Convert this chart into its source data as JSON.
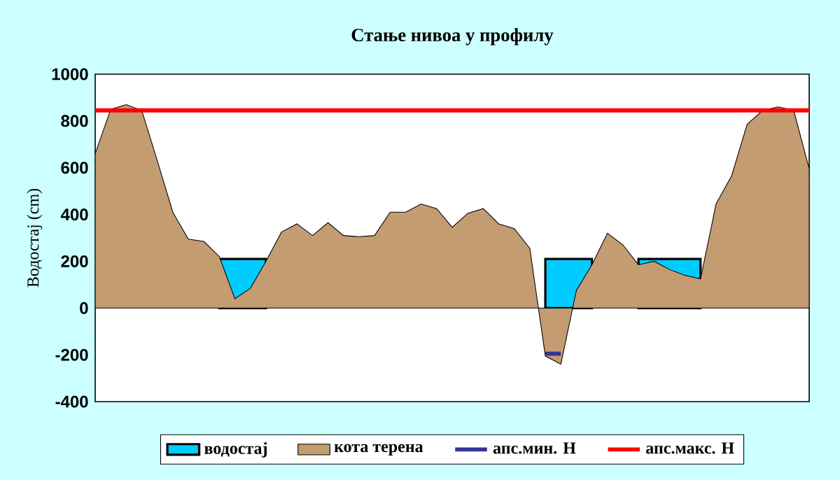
{
  "chart_data": {
    "type": "area",
    "title": "Стање нивоа у профилу",
    "ylabel": "Водостај (cm)",
    "categories": [
      null,
      null,
      null,
      null,
      null,
      null,
      null,
      null,
      null,
      null,
      null,
      null,
      null,
      null,
      null,
      null,
      null,
      null,
      null,
      null,
      null,
      null,
      null,
      null,
      null,
      null,
      null,
      null,
      null,
      null,
      null,
      null,
      null,
      null,
      null,
      null,
      null,
      null,
      null,
      null,
      null,
      null,
      null,
      null,
      null,
      null,
      null
    ],
    "series": [
      {
        "name": "водостај",
        "color": "#00ccff",
        "values": [
          null,
          null,
          null,
          null,
          null,
          null,
          null,
          null,
          210,
          210,
          210,
          210,
          null,
          null,
          null,
          null,
          null,
          null,
          null,
          null,
          null,
          null,
          null,
          null,
          null,
          null,
          null,
          null,
          null,
          210,
          210,
          210,
          210,
          null,
          null,
          210,
          210,
          210,
          210,
          210,
          null,
          null,
          null,
          null,
          null,
          null,
          null
        ]
      },
      {
        "name": "кота терена",
        "color": "#c49c72",
        "values": [
          660,
          850,
          870,
          845,
          630,
          410,
          295,
          285,
          220,
          40,
          85,
          200,
          325,
          360,
          310,
          365,
          310,
          305,
          310,
          410,
          410,
          445,
          425,
          345,
          405,
          425,
          360,
          340,
          255,
          -205,
          -240,
          75,
          185,
          320,
          270,
          185,
          200,
          165,
          140,
          125,
          445,
          565,
          785,
          845,
          860,
          845,
          595
        ]
      },
      {
        "name": "апс.мин. Н",
        "type": "line",
        "color": "#333399",
        "values": [
          null,
          null,
          null,
          null,
          null,
          null,
          null,
          null,
          null,
          null,
          null,
          null,
          null,
          null,
          null,
          null,
          null,
          null,
          null,
          null,
          null,
          null,
          null,
          null,
          null,
          null,
          null,
          null,
          null,
          -195,
          -195,
          null,
          null,
          null,
          null,
          null,
          null,
          null,
          null,
          null,
          null,
          null,
          null,
          null,
          null,
          null,
          null
        ]
      },
      {
        "name": "апс.макс. Н",
        "type": "line",
        "color": "#ff0000",
        "values": [
          845,
          845,
          845,
          845,
          845,
          845,
          845,
          845,
          845,
          845,
          845,
          845,
          845,
          845,
          845,
          845,
          845,
          845,
          845,
          845,
          845,
          845,
          845,
          845,
          845,
          845,
          845,
          845,
          845,
          845,
          845,
          845,
          845,
          845,
          845,
          845,
          845,
          845,
          845,
          845,
          845,
          845,
          845,
          845,
          845,
          845,
          845
        ]
      }
    ],
    "ylim": [
      -400,
      1000
    ],
    "yticks": [
      -400,
      -200,
      0,
      200,
      400,
      600,
      800,
      1000
    ],
    "legend": "bottom",
    "grid": false
  }
}
